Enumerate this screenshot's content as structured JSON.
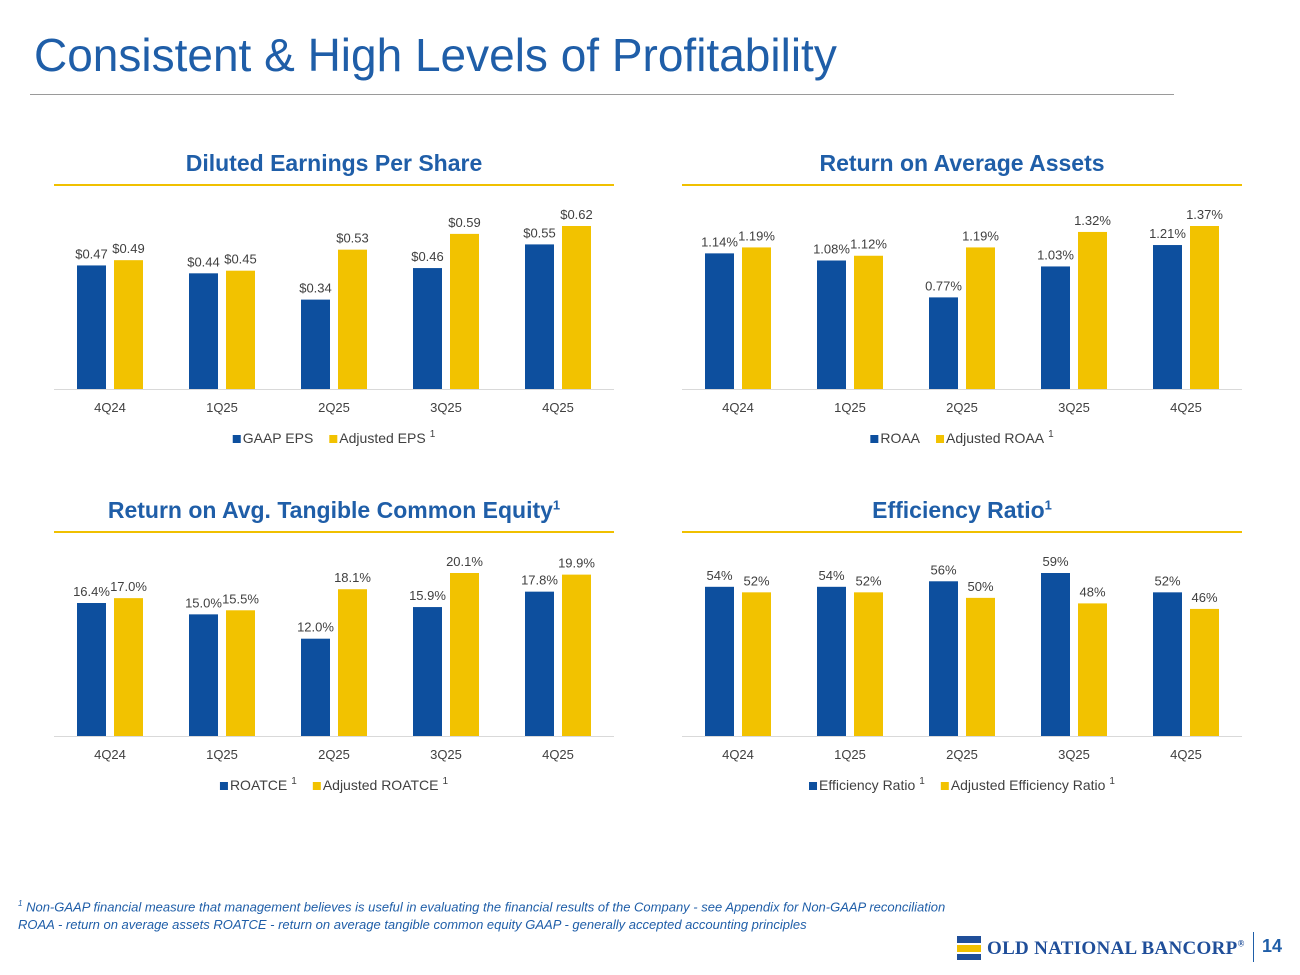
{
  "page": {
    "title": "Consistent & High Levels of Profitability",
    "page_number": "14"
  },
  "footnotes": {
    "line1_marker": "1",
    "line1": "Non-GAAP financial measure that management believes is useful in evaluating the financial results of the Company - see Appendix for Non-GAAP reconciliation",
    "line2": "ROAA - return on average assets   ROATCE - return on average tangible common equity   GAAP - generally accepted accounting principles"
  },
  "logo": {
    "text": "OLD NATIONAL BANCORP",
    "mark": "®"
  },
  "colors": {
    "series1": "#0d4f9e",
    "series2": "#f2c200",
    "title": "#1f5ea8",
    "accent_rule": "#f0c000"
  },
  "chart_data": [
    {
      "type": "bar",
      "title": "Diluted Earnings Per Share",
      "title_sup": "",
      "categories": [
        "4Q24",
        "1Q25",
        "2Q25",
        "3Q25",
        "4Q25"
      ],
      "series": [
        {
          "name": "GAAP EPS",
          "sup": "",
          "values": [
            0.47,
            0.44,
            0.34,
            0.46,
            0.55
          ],
          "labels": [
            "$0.47",
            "$0.44",
            "$0.34",
            "$0.46",
            "$0.55"
          ]
        },
        {
          "name": "Adjusted EPS",
          "sup": "1",
          "values": [
            0.49,
            0.45,
            0.53,
            0.59,
            0.62
          ],
          "labels": [
            "$0.49",
            "$0.45",
            "$0.53",
            "$0.59",
            "$0.62"
          ]
        }
      ],
      "ylim": [
        0,
        0.62
      ],
      "legend": "bottom",
      "grid": false
    },
    {
      "type": "bar",
      "title": "Return on Average Assets",
      "title_sup": "",
      "categories": [
        "4Q24",
        "1Q25",
        "2Q25",
        "3Q25",
        "4Q25"
      ],
      "series": [
        {
          "name": "ROAA",
          "sup": "",
          "values": [
            1.14,
            1.08,
            0.77,
            1.03,
            1.21
          ],
          "labels": [
            "1.14%",
            "1.08%",
            "0.77%",
            "1.03%",
            "1.21%"
          ]
        },
        {
          "name": "Adjusted ROAA",
          "sup": "1",
          "values": [
            1.19,
            1.12,
            1.19,
            1.32,
            1.37
          ],
          "labels": [
            "1.19%",
            "1.12%",
            "1.19%",
            "1.32%",
            "1.37%"
          ]
        }
      ],
      "ylim": [
        0,
        1.37
      ],
      "legend": "bottom",
      "grid": false
    },
    {
      "type": "bar",
      "title": "Return on Avg. Tangible Common Equity",
      "title_sup": "1",
      "categories": [
        "4Q24",
        "1Q25",
        "2Q25",
        "3Q25",
        "4Q25"
      ],
      "series": [
        {
          "name": "ROATCE",
          "sup": "1",
          "values": [
            16.4,
            15.0,
            12.0,
            15.9,
            17.8
          ],
          "labels": [
            "16.4%",
            "15.0%",
            "12.0%",
            "15.9%",
            "17.8%"
          ]
        },
        {
          "name": "Adjusted ROATCE",
          "sup": "1",
          "values": [
            17.0,
            15.5,
            18.1,
            20.1,
            19.9
          ],
          "labels": [
            "17.0%",
            "15.5%",
            "18.1%",
            "20.1%",
            "19.9%"
          ]
        }
      ],
      "ylim": [
        0,
        20.1
      ],
      "legend": "bottom",
      "grid": false
    },
    {
      "type": "bar",
      "title": "Efficiency Ratio",
      "title_sup": "1",
      "categories": [
        "4Q24",
        "1Q25",
        "2Q25",
        "3Q25",
        "4Q25"
      ],
      "series": [
        {
          "name": "Efficiency Ratio",
          "sup": "1",
          "values": [
            54,
            54,
            56,
            59,
            52
          ],
          "labels": [
            "54%",
            "54%",
            "56%",
            "59%",
            "52%"
          ]
        },
        {
          "name": "Adjusted Efficiency Ratio",
          "sup": "1",
          "values": [
            52,
            52,
            50,
            48,
            46
          ],
          "labels": [
            "52%",
            "52%",
            "50%",
            "48%",
            "46%"
          ]
        }
      ],
      "ylim": [
        0,
        59
      ],
      "legend": "bottom",
      "grid": false
    }
  ]
}
